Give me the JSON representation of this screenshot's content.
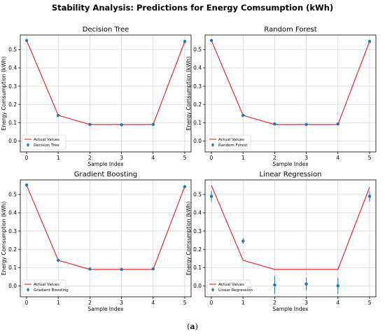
{
  "figure": {
    "suptitle": "Stability Analysis: Predictions for Energy Comsumption (kWh)",
    "caption_open": "(",
    "caption_letter": "a",
    "caption_close": ")"
  },
  "colors": {
    "actual_line": "#e8262b",
    "prediction": "#1f77b4",
    "grid": "#d3d3d3",
    "axes": "#000000"
  },
  "chart_data": [
    {
      "type": "line",
      "title": "Decision Tree",
      "xlabel": "Sample Index",
      "ylabel": "Energy Comsumption (kWh)",
      "x": [
        0,
        1,
        2,
        3,
        4,
        5
      ],
      "xlim": [
        -0.2,
        5.2
      ],
      "ylim": [
        -0.06,
        0.58
      ],
      "yticks": [
        0.0,
        0.1,
        0.2,
        0.3,
        0.4,
        0.5
      ],
      "xticks": [
        0,
        1,
        2,
        3,
        4,
        5
      ],
      "grid": true,
      "legend_position": "lower-left",
      "series": [
        {
          "name": "Actual Values",
          "style": "line",
          "values": [
            0.55,
            0.14,
            0.09,
            0.09,
            0.09,
            0.545
          ]
        },
        {
          "name": "Decision Tree",
          "style": "errorbar",
          "values": [
            0.55,
            0.14,
            0.09,
            0.088,
            0.09,
            0.545
          ],
          "errors": [
            0.004,
            0.003,
            0.003,
            0.003,
            0.003,
            0.004
          ]
        }
      ]
    },
    {
      "type": "line",
      "title": "Random Forest",
      "xlabel": "Sample Index",
      "ylabel": "Energy Comsumption (kWh)",
      "x": [
        0,
        1,
        2,
        3,
        4,
        5
      ],
      "xlim": [
        -0.2,
        5.2
      ],
      "ylim": [
        -0.06,
        0.58
      ],
      "yticks": [
        0.0,
        0.1,
        0.2,
        0.3,
        0.4,
        0.5
      ],
      "xticks": [
        0,
        1,
        2,
        3,
        4,
        5
      ],
      "grid": true,
      "legend_position": "lower-left",
      "series": [
        {
          "name": "Actual Values",
          "style": "line",
          "values": [
            0.55,
            0.14,
            0.09,
            0.09,
            0.09,
            0.545
          ]
        },
        {
          "name": "Random Forest",
          "style": "errorbar",
          "values": [
            0.55,
            0.14,
            0.093,
            0.09,
            0.093,
            0.545
          ],
          "errors": [
            0.004,
            0.004,
            0.004,
            0.003,
            0.004,
            0.004
          ]
        }
      ]
    },
    {
      "type": "line",
      "title": "Gradient Boosting",
      "xlabel": "Sample Index",
      "ylabel": "Energy Comsumption (kWh)",
      "x": [
        0,
        1,
        2,
        3,
        4,
        5
      ],
      "xlim": [
        -0.2,
        5.2
      ],
      "ylim": [
        -0.06,
        0.58
      ],
      "yticks": [
        0.0,
        0.1,
        0.2,
        0.3,
        0.4,
        0.5
      ],
      "xticks": [
        0,
        1,
        2,
        3,
        4,
        5
      ],
      "grid": true,
      "legend_position": "lower-left",
      "series": [
        {
          "name": "Actual Values",
          "style": "line",
          "values": [
            0.55,
            0.14,
            0.09,
            0.09,
            0.09,
            0.545
          ]
        },
        {
          "name": "Gradient Boosting",
          "style": "errorbar",
          "values": [
            0.552,
            0.14,
            0.092,
            0.09,
            0.093,
            0.543
          ],
          "errors": [
            0.005,
            0.004,
            0.004,
            0.003,
            0.004,
            0.005
          ]
        }
      ]
    },
    {
      "type": "line",
      "title": "Linear Regression",
      "xlabel": "Sample Index",
      "ylabel": "Energy Comsumption (kWh)",
      "x": [
        0,
        1,
        2,
        3,
        4,
        5
      ],
      "xlim": [
        -0.2,
        5.2
      ],
      "ylim": [
        -0.06,
        0.58
      ],
      "yticks": [
        0.0,
        0.1,
        0.2,
        0.3,
        0.4,
        0.5
      ],
      "xticks": [
        0,
        1,
        2,
        3,
        4,
        5
      ],
      "grid": true,
      "legend_position": "lower-left",
      "series": [
        {
          "name": "Actual Values",
          "style": "line",
          "values": [
            0.55,
            0.14,
            0.09,
            0.09,
            0.09,
            0.54
          ]
        },
        {
          "name": "Linear Regression",
          "style": "errorbar",
          "values": [
            0.49,
            0.245,
            0.005,
            0.01,
            0.0,
            0.49
          ],
          "errors": [
            0.03,
            0.015,
            0.05,
            0.035,
            0.045,
            0.03
          ]
        }
      ]
    }
  ]
}
